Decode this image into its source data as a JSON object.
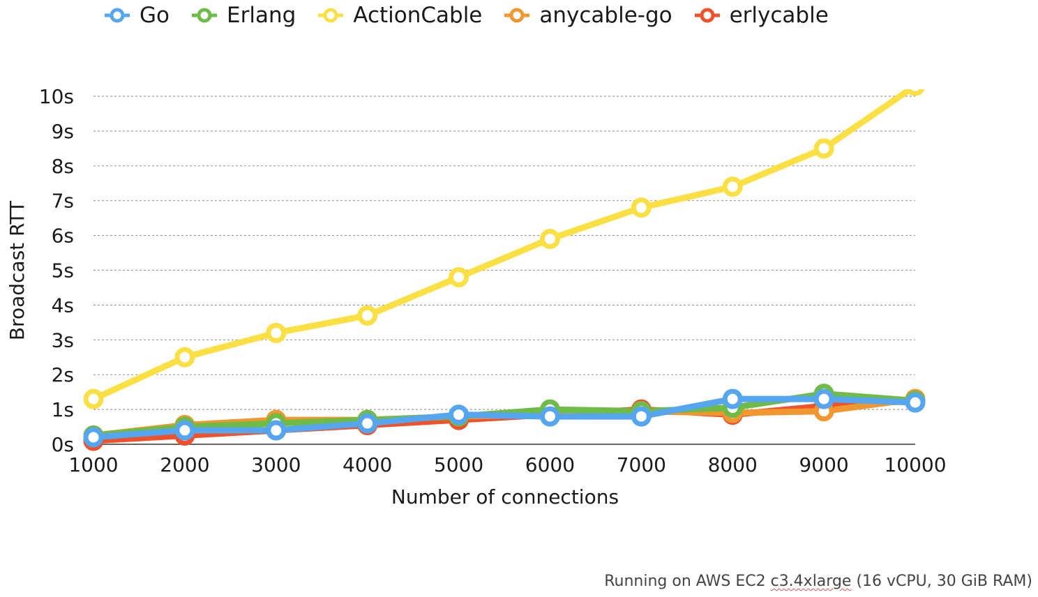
{
  "chart_data": {
    "type": "line",
    "title": "",
    "xlabel": "Number of connections",
    "ylabel": "Broadcast RTT",
    "x": [
      1000,
      2000,
      3000,
      4000,
      5000,
      6000,
      7000,
      8000,
      9000,
      10000
    ],
    "x_tick_labels": [
      "1000",
      "2000",
      "3000",
      "4000",
      "5000",
      "6000",
      "7000",
      "8000",
      "9000",
      "10000"
    ],
    "y_tick_labels": [
      "0s",
      "1s",
      "2s",
      "3s",
      "4s",
      "5s",
      "6s",
      "7s",
      "8s",
      "9s",
      "10s"
    ],
    "ylim": [
      0,
      10
    ],
    "grid": "horizontal dotted",
    "legend_position": "top",
    "series": [
      {
        "name": "erlycable",
        "color": "#f0502a",
        "values": [
          0.1,
          0.25,
          0.4,
          0.55,
          0.7,
          0.85,
          1.0,
          0.85,
          1.1,
          1.25
        ]
      },
      {
        "name": "anycable-go",
        "color": "#f0972f",
        "values": [
          0.25,
          0.55,
          0.7,
          0.7,
          0.8,
          0.85,
          0.95,
          0.9,
          0.95,
          1.3
        ]
      },
      {
        "name": "Erlang",
        "color": "#6fbb47",
        "values": [
          0.25,
          0.5,
          0.6,
          0.7,
          0.8,
          1.0,
          0.95,
          1.05,
          1.45,
          1.25
        ]
      },
      {
        "name": "ActionCable",
        "color": "#fbe045",
        "values": [
          1.3,
          2.5,
          3.2,
          3.7,
          4.8,
          5.9,
          6.8,
          7.4,
          8.5,
          10.3
        ]
      },
      {
        "name": "Go",
        "color": "#55a5ef",
        "values": [
          0.2,
          0.4,
          0.4,
          0.6,
          0.85,
          0.8,
          0.8,
          1.3,
          1.3,
          1.2
        ]
      }
    ]
  },
  "legend": {
    "items": [
      {
        "label": "Go",
        "color": "#55a5ef"
      },
      {
        "label": "Erlang",
        "color": "#6fbb47"
      },
      {
        "label": "ActionCable",
        "color": "#fbe045"
      },
      {
        "label": "anycable-go",
        "color": "#f0972f"
      },
      {
        "label": "erlycable",
        "color": "#f0502a"
      }
    ]
  },
  "footnote": {
    "prefix": "Running on AWS EC2 ",
    "instance": "c3.4xlarge",
    "suffix": " (16 vCPU, 30 GiB RAM)"
  }
}
